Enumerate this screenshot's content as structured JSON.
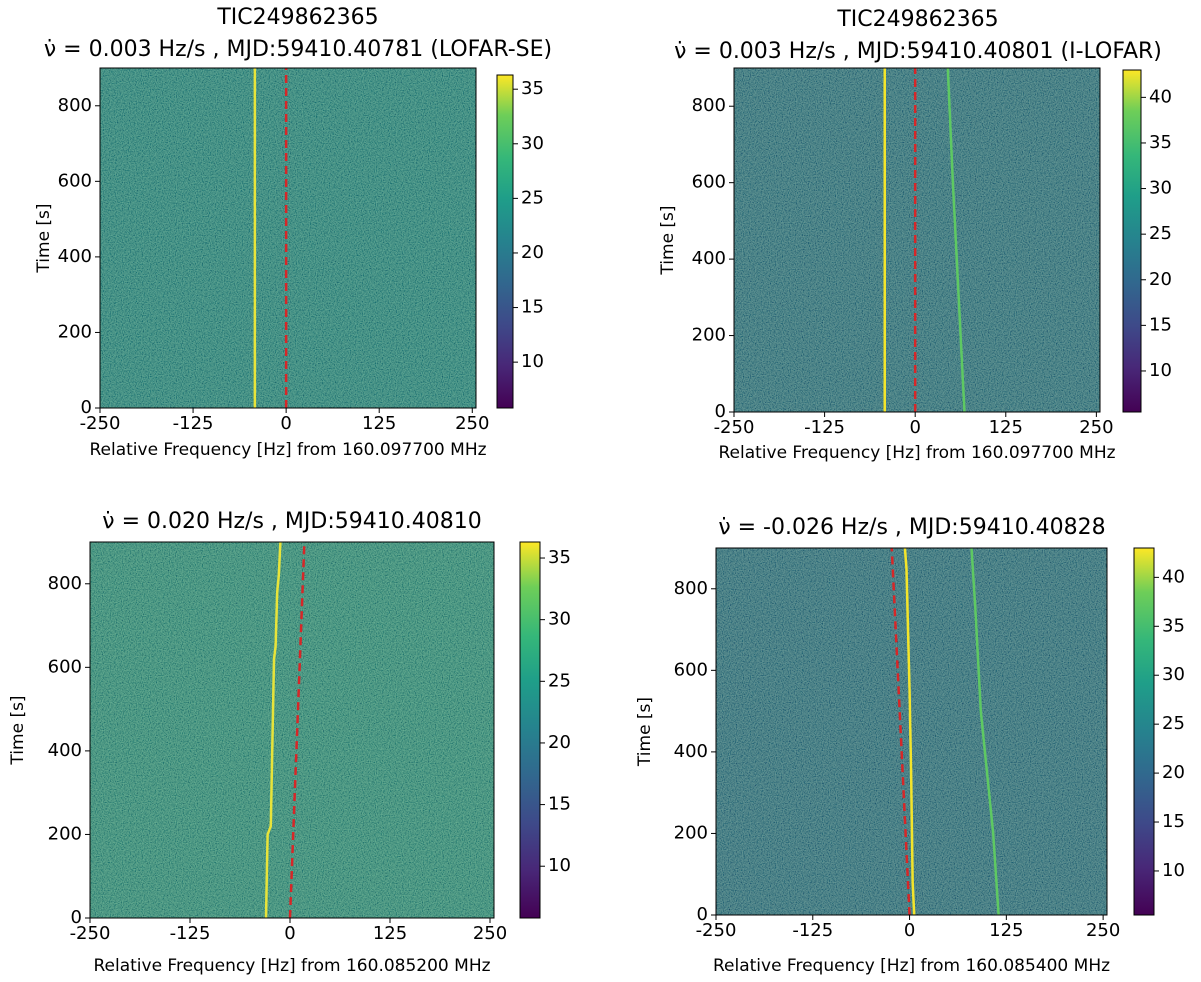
{
  "chart_data": [
    {
      "type": "heatmap",
      "title": "TIC249862365",
      "subtitle": "ν̇ = 0.003 Hz/s , MJD:59410.40781 (LOFAR-SE)",
      "xlabel": "Relative Frequency [Hz] from 160.097700 MHz",
      "ylabel": "Time [s]",
      "xlim": [
        -250,
        255
      ],
      "xticks": [
        -250,
        -125,
        0,
        125,
        250
      ],
      "ylim": [
        0,
        900
      ],
      "yticks": [
        0,
        200,
        400,
        600,
        800
      ],
      "clim": [
        5.8,
        36.3
      ],
      "cticks": [
        10,
        15,
        20,
        25,
        30,
        35
      ],
      "background_color": "#25868c",
      "lines": [
        {
          "color": "#e8e43a",
          "style": "solid",
          "x": [
            -42,
            -42
          ],
          "y": [
            0,
            900
          ]
        },
        {
          "color": "#d62728",
          "style": "dashed",
          "x": [
            0,
            0
          ],
          "y": [
            0,
            900
          ]
        }
      ]
    },
    {
      "type": "heatmap",
      "title": "TIC249862365",
      "subtitle": "ν̇ = 0.003 Hz/s , MJD:59410.40801 (I-LOFAR)",
      "xlabel": "Relative Frequency [Hz] from 160.097700 MHz",
      "ylabel": "Time [s]",
      "xlim": [
        -250,
        255
      ],
      "xticks": [
        -250,
        -125,
        0,
        125,
        250
      ],
      "ylim": [
        0,
        900
      ],
      "yticks": [
        0,
        200,
        400,
        600,
        800
      ],
      "clim": [
        5.5,
        43
      ],
      "cticks": [
        10,
        15,
        20,
        25,
        30,
        35,
        40
      ],
      "background_color": "#2d6f8e",
      "lines": [
        {
          "color": "#f4e52a",
          "style": "solid",
          "x": [
            -42,
            -42
          ],
          "y": [
            0,
            900
          ]
        },
        {
          "color": "#5ec962",
          "style": "solid",
          "x": [
            68,
            60,
            52,
            45
          ],
          "y": [
            0,
            300,
            600,
            900
          ]
        },
        {
          "color": "#d62728",
          "style": "dashed",
          "x": [
            0,
            0
          ],
          "y": [
            0,
            900
          ]
        }
      ]
    },
    {
      "type": "heatmap",
      "title": "ν̇ = 0.020 Hz/s , MJD:59410.40810",
      "xlabel": "Relative Frequency [Hz] from 160.085200 MHz",
      "ylabel": "Time [s]",
      "xlim": [
        -250,
        255
      ],
      "xticks": [
        -250,
        -125,
        0,
        125,
        250
      ],
      "ylim": [
        0,
        900
      ],
      "yticks": [
        0,
        200,
        400,
        600,
        800
      ],
      "clim": [
        5.8,
        36.3
      ],
      "cticks": [
        10,
        15,
        20,
        25,
        30,
        35
      ],
      "background_color": "#2f8f88",
      "lines": [
        {
          "color": "#e8e43a",
          "style": "solid",
          "x": [
            -30,
            -28,
            -24,
            -22,
            -20,
            -18,
            -16,
            -14,
            -12
          ],
          "y": [
            0,
            200,
            220,
            420,
            620,
            650,
            780,
            820,
            900
          ]
        },
        {
          "color": "#d62728",
          "style": "dashed",
          "x": [
            0,
            18
          ],
          "y": [
            0,
            900
          ]
        }
      ]
    },
    {
      "type": "heatmap",
      "title": "ν̇ = -0.026 Hz/s , MJD:59410.40828",
      "xlabel": "Relative Frequency [Hz] from 160.085400 MHz",
      "ylabel": "Time [s]",
      "xlim": [
        -250,
        255
      ],
      "xticks": [
        -250,
        -125,
        0,
        125,
        250
      ],
      "ylim": [
        0,
        900
      ],
      "yticks": [
        0,
        200,
        400,
        600,
        800
      ],
      "clim": [
        5.5,
        43
      ],
      "cticks": [
        10,
        15,
        20,
        25,
        30,
        35,
        40
      ],
      "background_color": "#2d6d8e",
      "lines": [
        {
          "color": "#f4e52a",
          "style": "solid",
          "x": [
            6,
            4,
            2,
            0,
            -2,
            -4,
            -6
          ],
          "y": [
            0,
            80,
            350,
            550,
            700,
            850,
            900
          ]
        },
        {
          "color": "#5ec962",
          "style": "solid",
          "x": [
            115,
            108,
            100,
            92,
            85,
            80
          ],
          "y": [
            0,
            200,
            350,
            500,
            750,
            900
          ]
        },
        {
          "color": "#d62728",
          "style": "dashed",
          "x": [
            0,
            -23
          ],
          "y": [
            0,
            900
          ]
        }
      ]
    }
  ]
}
